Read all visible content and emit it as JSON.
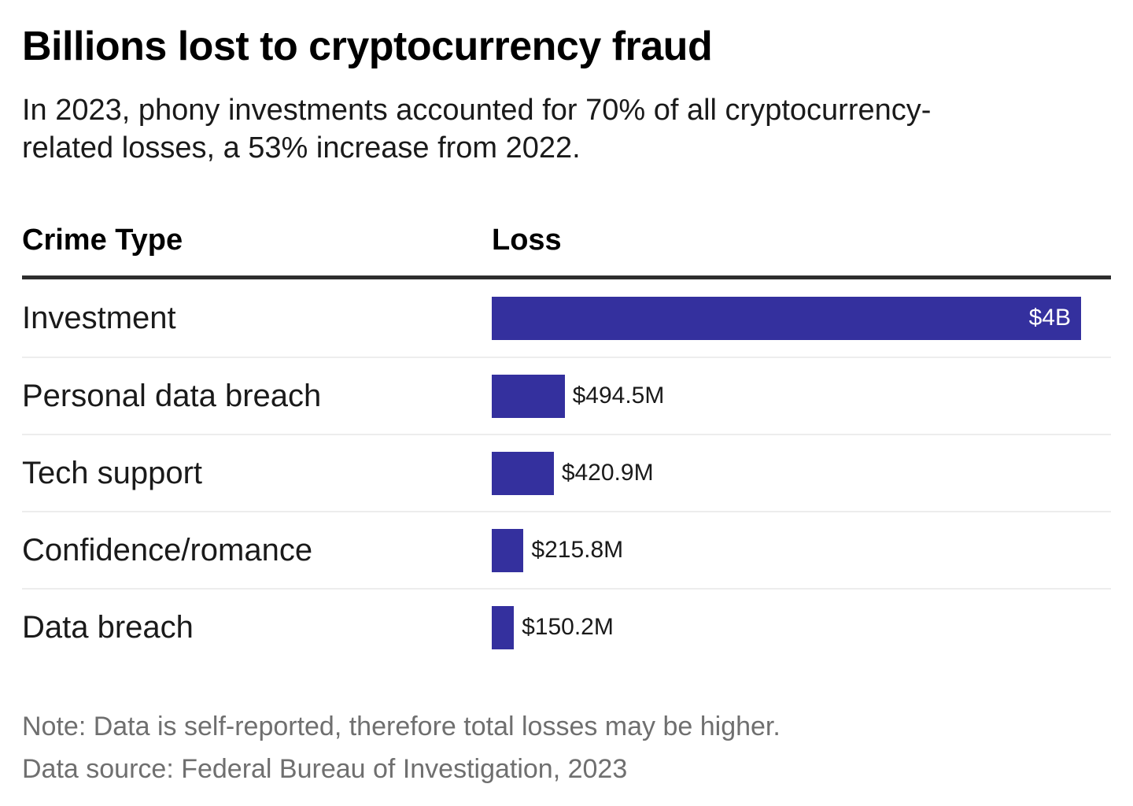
{
  "chart_data": {
    "type": "bar",
    "orientation": "horizontal",
    "title": "Billions lost to cryptocurrency fraud",
    "subtitle": "In 2023, phony investments accounted for 70% of all cryptocurrency-related losses, a 53% increase from 2022.",
    "column_headers": {
      "category": "Crime Type",
      "value": "Loss"
    },
    "categories": [
      "Investment",
      "Personal data breach",
      "Tech support",
      "Confidence/romance",
      "Data breach"
    ],
    "values_million_usd": [
      4000,
      494.5,
      420.9,
      215.8,
      150.2
    ],
    "xlim": [
      0,
      4000
    ],
    "grid": false,
    "legend": "none",
    "bar_color": "#34309e",
    "rows": [
      {
        "label": "Investment",
        "value_musd": 4000,
        "value_label": "$4B",
        "value_label_position": "inside"
      },
      {
        "label": "Personal data breach",
        "value_musd": 494.5,
        "value_label": "$494.5M",
        "value_label_position": "outside"
      },
      {
        "label": "Tech support",
        "value_musd": 420.9,
        "value_label": "$420.9M",
        "value_label_position": "outside"
      },
      {
        "label": "Confidence/romance",
        "value_musd": 215.8,
        "value_label": "$215.8M",
        "value_label_position": "outside"
      },
      {
        "label": "Data breach",
        "value_musd": 150.2,
        "value_label": "$150.2M",
        "value_label_position": "outside"
      }
    ],
    "note": "Note: Data is self-reported, therefore total losses may be higher.",
    "source": "Data source: Federal Bureau of Investigation, 2023"
  },
  "colors": {
    "bar": "#34309e",
    "header_rule": "#2e2e2e",
    "row_divider": "#ededed",
    "title_text": "#000000",
    "body_text": "#1a1a1a",
    "footnote_text": "#6f6f6f",
    "inside_label_text": "#ffffff",
    "background": "#ffffff"
  }
}
